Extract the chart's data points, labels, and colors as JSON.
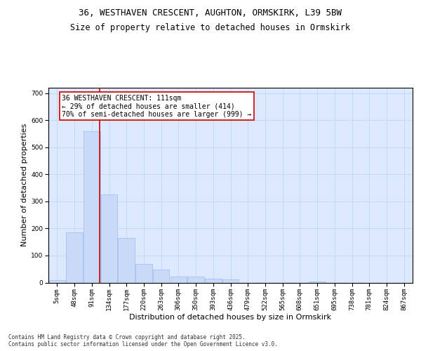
{
  "title_line1": "36, WESTHAVEN CRESCENT, AUGHTON, ORMSKIRK, L39 5BW",
  "title_line2": "Size of property relative to detached houses in Ormskirk",
  "xlabel": "Distribution of detached houses by size in Ormskirk",
  "ylabel": "Number of detached properties",
  "categories": [
    "5sqm",
    "48sqm",
    "91sqm",
    "134sqm",
    "177sqm",
    "220sqm",
    "263sqm",
    "306sqm",
    "350sqm",
    "393sqm",
    "436sqm",
    "479sqm",
    "522sqm",
    "565sqm",
    "608sqm",
    "651sqm",
    "695sqm",
    "738sqm",
    "781sqm",
    "824sqm",
    "867sqm"
  ],
  "values": [
    8,
    185,
    560,
    325,
    165,
    70,
    48,
    22,
    22,
    14,
    12,
    0,
    0,
    0,
    0,
    5,
    0,
    0,
    0,
    0,
    0
  ],
  "bar_color": "#c9daf8",
  "bar_edge_color": "#a4c2f4",
  "vline_color": "#cc0000",
  "annotation_text": "36 WESTHAVEN CRESCENT: 111sqm\n← 29% of detached houses are smaller (414)\n70% of semi-detached houses are larger (999) →",
  "annotation_box_color": "#ffffff",
  "annotation_box_edge": "#cc0000",
  "ylim": [
    0,
    720
  ],
  "yticks": [
    0,
    100,
    200,
    300,
    400,
    500,
    600,
    700
  ],
  "grid_color": "#c9d8ef",
  "background_color": "#dce8fb",
  "footer_text": "Contains HM Land Registry data © Crown copyright and database right 2025.\nContains public sector information licensed under the Open Government Licence v3.0.",
  "title_fontsize": 9,
  "subtitle_fontsize": 8.5,
  "tick_fontsize": 6.5,
  "label_fontsize": 8,
  "annotation_fontsize": 7,
  "footer_fontsize": 5.5
}
